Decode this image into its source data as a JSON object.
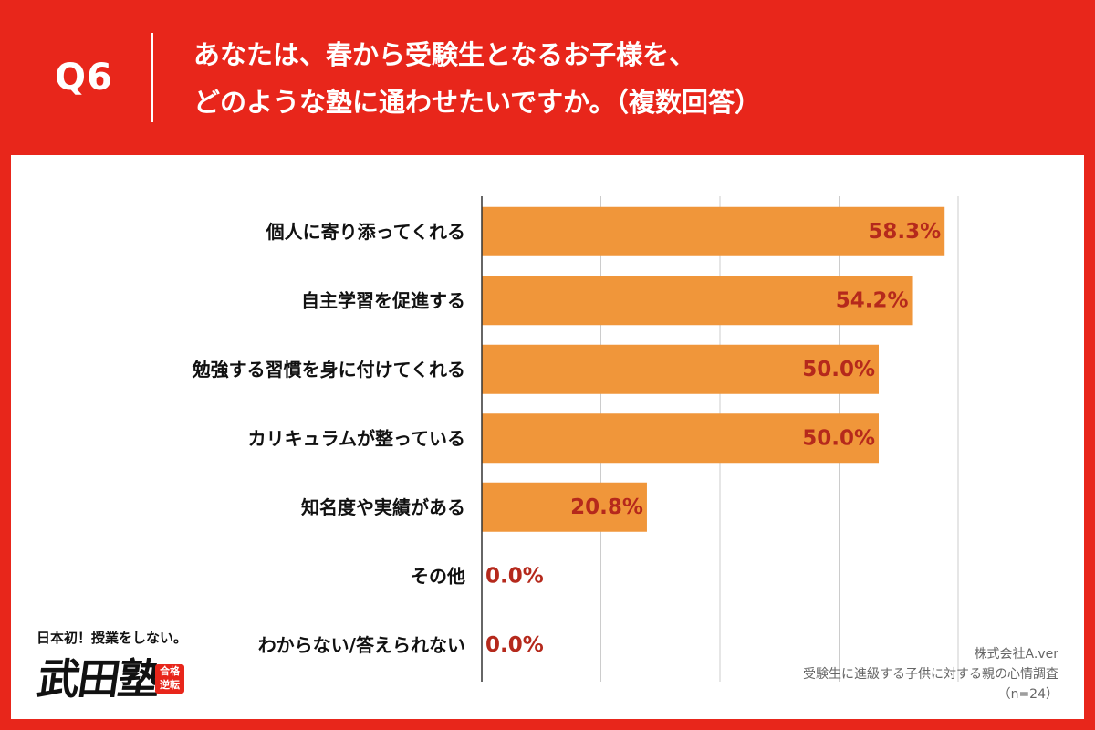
{
  "header": {
    "question_label": "Q6",
    "title_line1": "あなたは、春から受験生となるお子様を、",
    "title_line2": "どのような塾に通わせたいですか。（複数回答）"
  },
  "chart_data": {
    "type": "bar",
    "orientation": "horizontal",
    "categories": [
      "個人に寄り添ってくれる",
      "自主学習を促進する",
      "勉強する習慣を身に付けてくれる",
      "カリキュラムが整っている",
      "知名度や実績がある",
      "その他",
      "わからない/答えられない"
    ],
    "values": [
      58.3,
      54.2,
      50.0,
      50.0,
      20.8,
      0.0,
      0.0
    ],
    "value_labels": [
      "58.3%",
      "54.2%",
      "50.0%",
      "50.0%",
      "20.8%",
      "0.0%",
      "0.0%"
    ],
    "xlim": [
      0,
      60
    ],
    "grid": true,
    "colors": {
      "bar": "#f0963a",
      "value_label": "#b5291c",
      "grid": "#cccccc",
      "axis": "#333333"
    }
  },
  "logo": {
    "tagline": "日本初！授業をしない。",
    "name": "武田塾",
    "badge": "合格逆転"
  },
  "source": {
    "company": "株式会社A.ver",
    "survey": "受験生に進級する子供に対する親の心情調査",
    "sample": "（n=24）"
  }
}
